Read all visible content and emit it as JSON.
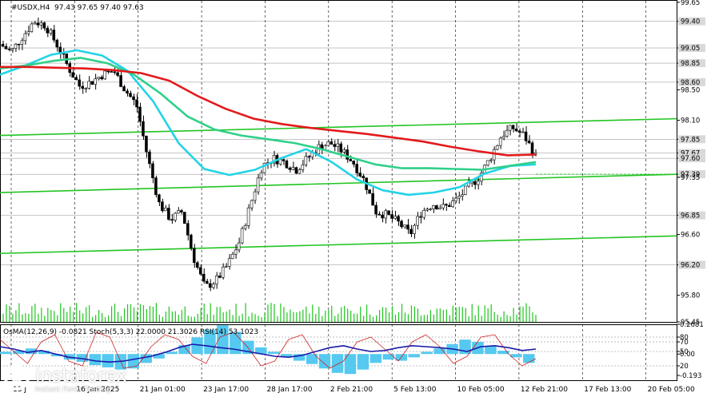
{
  "header": {
    "symbol_label": "#USDX,H4",
    "ohlc": "97.43 97.65 97.40 97.63"
  },
  "indicator_label": "OsMA(12,26,9) -0.0821  Stoch(5,3,3) 22.0000 21.3026  RSI(14) 53.1023",
  "colors": {
    "ma_red": "#e31a1c",
    "ma_green": "#2fd08a",
    "ma_cyan": "#22d3e6",
    "channel": "#22c522",
    "candles": "#000000",
    "volume": "#1fc51f",
    "osma": "#55c9f0",
    "stoch_main": "#1a1aa8",
    "stoch_signal": "#cc2222"
  },
  "chart_data": {
    "type": "line",
    "title": "",
    "ylim": [
      95.45,
      99.68
    ],
    "price_ticks": [
      "99.65",
      "99.40",
      "99.05",
      "98.85",
      "98.60",
      "98.50",
      "98.10",
      "97.85",
      "97.67",
      "97.60",
      "97.39",
      "97.35",
      "96.85",
      "96.60",
      "96.20",
      "95.80",
      "95.45"
    ],
    "highlighted_ticks": [
      "99.40",
      "99.05",
      "98.85",
      "98.60",
      "97.85",
      "97.67",
      "97.60",
      "97.39",
      "96.85",
      "96.20"
    ],
    "x_tick_labels": [
      "13 J",
      "16 Jan 2025",
      "21 Jan 01:00",
      "23 Jan 17:00",
      "28 Jan 17:00",
      "2 Feb 21:00",
      "5 Feb 13:00",
      "10 Feb 05:00",
      "12 Feb 21:00",
      "17 Feb 13:00",
      "20 Feb 05:00"
    ],
    "price": [
      99.1,
      99.0,
      99.2,
      99.4,
      99.35,
      99.1,
      98.8,
      98.55,
      98.6,
      98.7,
      98.75,
      98.5,
      98.3,
      97.6,
      97.0,
      96.8,
      96.9,
      96.3,
      95.9,
      96.0,
      96.2,
      96.5,
      97.0,
      97.5,
      97.6,
      97.55,
      97.45,
      97.6,
      97.75,
      97.8,
      97.7,
      97.55,
      97.3,
      96.9,
      96.85,
      96.75,
      96.6,
      96.9,
      97.0,
      96.95,
      97.05,
      97.2,
      97.35,
      97.6,
      97.9,
      98.0,
      97.9,
      97.63
    ],
    "ma_red": [
      98.8,
      98.8,
      98.79,
      98.78,
      98.76,
      98.72,
      98.62,
      98.42,
      98.25,
      98.12,
      98.05,
      98.0,
      97.96,
      97.92,
      97.87,
      97.82,
      97.75,
      97.69,
      97.64,
      97.65
    ],
    "ma_green": [
      98.78,
      98.82,
      98.88,
      98.92,
      98.85,
      98.7,
      98.45,
      98.15,
      97.98,
      97.9,
      97.85,
      97.8,
      97.72,
      97.62,
      97.52,
      97.47,
      97.47,
      97.46,
      97.45,
      97.5,
      97.55
    ],
    "ma_cyan": [
      98.7,
      98.82,
      98.96,
      99.02,
      98.95,
      98.75,
      98.35,
      97.8,
      97.46,
      97.38,
      97.45,
      97.6,
      97.72,
      97.55,
      97.32,
      97.18,
      97.12,
      97.15,
      97.22,
      97.4,
      97.5,
      97.52
    ],
    "channel_lines": [
      {
        "from": 97.9,
        "to": 98.12
      },
      {
        "from": 97.15,
        "to": 97.39
      },
      {
        "from": 96.35,
        "to": 96.58
      }
    ],
    "indicator_ticks": [
      "0.2681",
      "80",
      "70",
      "50",
      "0.00",
      "20",
      "-0.193"
    ],
    "osma": [
      0.02,
      0.03,
      0.05,
      0.03,
      -0.02,
      -0.05,
      -0.07,
      -0.1,
      -0.12,
      -0.14,
      -0.13,
      -0.08,
      -0.04,
      0.02,
      0.08,
      0.15,
      0.22,
      0.26,
      0.2,
      0.12,
      0.06,
      0.02,
      -0.03,
      -0.06,
      -0.09,
      -0.13,
      -0.17,
      -0.18,
      -0.14,
      -0.08,
      -0.05,
      -0.06,
      -0.03,
      0.02,
      0.05,
      0.09,
      0.13,
      0.11,
      0.07,
      0.03,
      -0.03,
      -0.08
    ],
    "stoch_main": [
      60,
      55,
      48,
      52,
      45,
      38,
      35,
      30,
      28,
      30,
      35,
      40,
      48,
      58,
      65,
      62,
      58,
      55,
      50,
      45,
      40,
      38,
      42,
      50,
      58,
      62,
      55,
      50,
      52,
      58,
      62,
      60,
      58,
      55,
      50,
      60,
      62,
      58,
      52,
      55
    ],
    "stoch_signal": [
      75,
      50,
      25,
      70,
      85,
      30,
      20,
      90,
      80,
      15,
      20,
      60,
      85,
      75,
      40,
      25,
      80,
      90,
      60,
      20,
      30,
      75,
      85,
      40,
      15,
      30,
      70,
      80,
      55,
      30,
      70,
      85,
      60,
      25,
      40,
      80,
      85,
      45,
      20,
      35
    ]
  },
  "watermark": {
    "brand": "instaforex",
    "tagline": "Instant Forex Trading"
  }
}
